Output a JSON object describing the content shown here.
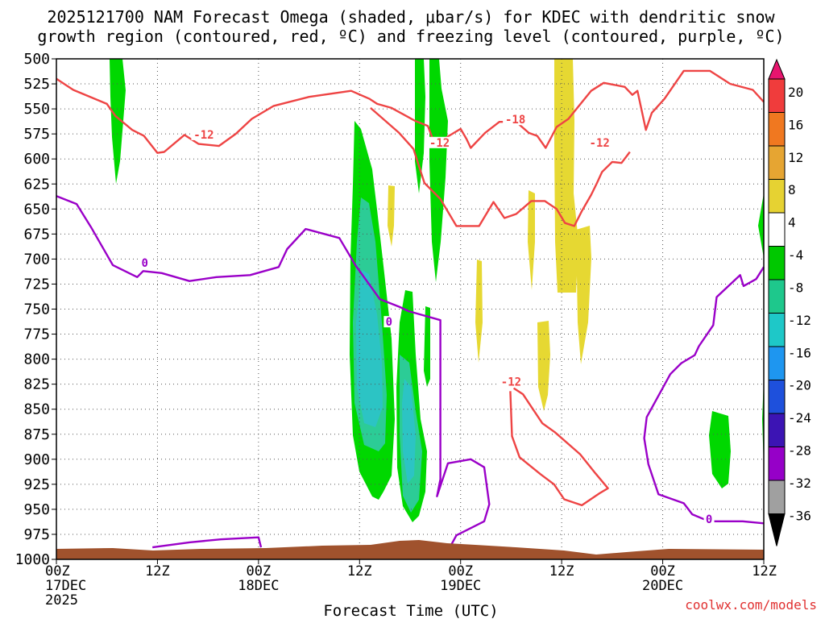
{
  "chart_data": {
    "type": "heatmap",
    "title_line1": "2025121700 NAM Forecast Omega (shaded, μbar/s) for KDEC with dendritic snow",
    "title_line2": "growth region (contoured, red, ºC) and freezing level (contoured, purple, ºC)",
    "xlabel": "Forecast Time (UTC)",
    "ylabel": "Pressure (hPa)",
    "credit": "coolwx.com/models",
    "x_range_hours": [
      0,
      84
    ],
    "y_range": [
      500,
      1000
    ],
    "x_ticks": [
      {
        "h": 0,
        "line1": "00Z",
        "line2": "17DEC",
        "line3": "2025"
      },
      {
        "h": 12,
        "line1": "12Z",
        "line2": "",
        "line3": ""
      },
      {
        "h": 24,
        "line1": "00Z",
        "line2": "18DEC",
        "line3": ""
      },
      {
        "h": 36,
        "line1": "12Z",
        "line2": "",
        "line3": ""
      },
      {
        "h": 48,
        "line1": "00Z",
        "line2": "19DEC",
        "line3": ""
      },
      {
        "h": 60,
        "line1": "12Z",
        "line2": "",
        "line3": ""
      },
      {
        "h": 72,
        "line1": "00Z",
        "line2": "20DEC",
        "line3": ""
      },
      {
        "h": 84,
        "line1": "12Z",
        "line2": "",
        "line3": ""
      }
    ],
    "y_ticks": [
      500,
      525,
      550,
      575,
      600,
      625,
      650,
      675,
      700,
      725,
      750,
      775,
      800,
      825,
      850,
      875,
      900,
      925,
      950,
      975,
      1000
    ],
    "colorbar": {
      "labels": [
        "20",
        "16",
        "12",
        "8",
        "4",
        "-4",
        "-8",
        "-12",
        "-16",
        "-20",
        "-24",
        "-28",
        "-32",
        "-36"
      ],
      "colors": [
        "#e8156e",
        "#f03c3c",
        "#f07820",
        "#e6a532",
        "#e6d232",
        "#ffffff",
        "#00c800",
        "#1ec88c",
        "#1ec8c8",
        "#1e96f0",
        "#1e50dc",
        "#3c14b4",
        "#9600c8",
        "#a0a0a0",
        "#000000"
      ]
    },
    "contour_labels": [
      {
        "text": "-12",
        "h": 17.5,
        "p": 578,
        "color": "#ee4444"
      },
      {
        "text": "-18",
        "h": 54.5,
        "p": 563,
        "color": "#ee4444"
      },
      {
        "text": "-12",
        "h": 45.5,
        "p": 586,
        "color": "#ee4444"
      },
      {
        "text": "-12",
        "h": 64.5,
        "p": 586,
        "color": "#ee4444"
      },
      {
        "text": "-12",
        "h": 54.0,
        "p": 825,
        "color": "#ee4444"
      },
      {
        "text": "0",
        "h": 10.5,
        "p": 706,
        "color": "#9a00c8"
      },
      {
        "text": "0",
        "h": 39.5,
        "p": 765,
        "color": "#9a00c8"
      },
      {
        "text": "0",
        "h": 77.5,
        "p": 962,
        "color": "#9a00c8"
      }
    ],
    "series": [
      {
        "name": "freezing-level-0C-main",
        "color": "#9a00c8",
        "points": [
          [
            0,
            637
          ],
          [
            2.4,
            645
          ],
          [
            4.1,
            668
          ],
          [
            6.7,
            706
          ],
          [
            9.6,
            718
          ],
          [
            10.3,
            712
          ],
          [
            12.5,
            714
          ],
          [
            15.8,
            722
          ],
          [
            19.0,
            718
          ],
          [
            23.0,
            716
          ],
          [
            26.4,
            708
          ],
          [
            27.4,
            690
          ],
          [
            29.6,
            670
          ],
          [
            33.6,
            679
          ],
          [
            35.5,
            706
          ],
          [
            38.4,
            740
          ],
          [
            40.8,
            748
          ],
          [
            41.8,
            752
          ],
          [
            45.6,
            761
          ],
          [
            45.6,
            920
          ],
          [
            45.2,
            937
          ],
          [
            46.5,
            904
          ],
          [
            49.2,
            900
          ],
          [
            50.8,
            908
          ],
          [
            51.4,
            945
          ],
          [
            50.8,
            962
          ],
          [
            47.5,
            976
          ],
          [
            46.4,
            993
          ]
        ]
      },
      {
        "name": "freezing-level-0C-right",
        "color": "#9a00c8",
        "points": [
          [
            84,
            964
          ],
          [
            81.5,
            962
          ],
          [
            77.5,
            962
          ],
          [
            75.5,
            955
          ],
          [
            74.5,
            944
          ],
          [
            71.5,
            935
          ],
          [
            70.3,
            905
          ],
          [
            69.8,
            879
          ],
          [
            70.1,
            858
          ],
          [
            72.9,
            815
          ],
          [
            74.2,
            804
          ],
          [
            75.8,
            796
          ],
          [
            76.3,
            787
          ],
          [
            78.0,
            766
          ],
          [
            78.4,
            738
          ],
          [
            81.2,
            716
          ],
          [
            81.6,
            727
          ],
          [
            83.1,
            720
          ],
          [
            84,
            708
          ]
        ]
      },
      {
        "name": "freezing-level-0C-surface",
        "color": "#9a00c8",
        "points": [
          [
            11.4,
            988
          ],
          [
            15.8,
            983
          ],
          [
            19.5,
            980
          ],
          [
            24.0,
            978
          ],
          [
            24.3,
            988
          ]
        ]
      },
      {
        "name": "dgz-minus12-top",
        "color": "#ee4444",
        "points": [
          [
            0,
            520
          ],
          [
            2.0,
            531
          ],
          [
            6.0,
            545
          ],
          [
            7.0,
            557
          ],
          [
            9.0,
            571
          ],
          [
            10.4,
            577
          ],
          [
            12.0,
            594
          ],
          [
            12.8,
            593
          ],
          [
            15.2,
            576
          ],
          [
            16.9,
            585
          ],
          [
            19.3,
            587
          ],
          [
            21.3,
            575
          ],
          [
            23.2,
            560
          ],
          [
            25.8,
            547
          ],
          [
            30.0,
            538
          ],
          [
            35.0,
            532
          ],
          [
            37.2,
            540
          ],
          [
            38.1,
            545
          ],
          [
            39.8,
            549
          ],
          [
            42.6,
            562
          ],
          [
            44.1,
            567
          ],
          [
            45.0,
            587
          ],
          [
            46.4,
            578
          ],
          [
            48.0,
            570
          ],
          [
            48.7,
            580
          ],
          [
            49.2,
            589
          ],
          [
            50.9,
            574
          ],
          [
            52.6,
            563
          ],
          [
            54.6,
            563
          ],
          [
            56.1,
            574
          ],
          [
            57.1,
            577
          ],
          [
            58.1,
            589
          ],
          [
            59.4,
            568
          ],
          [
            60.8,
            560
          ],
          [
            63.5,
            532
          ],
          [
            65.0,
            524
          ],
          [
            67.5,
            528
          ],
          [
            68.4,
            536
          ],
          [
            69.0,
            532
          ],
          [
            70.0,
            571
          ],
          [
            70.7,
            554
          ],
          [
            72.2,
            540
          ],
          [
            74.5,
            512
          ],
          [
            77.6,
            512
          ],
          [
            80.0,
            525
          ],
          [
            82.7,
            531
          ],
          [
            84,
            543
          ]
        ]
      },
      {
        "name": "dgz-minus12-mid",
        "color": "#ee4444",
        "points": [
          [
            37.3,
            549
          ],
          [
            40.7,
            574
          ],
          [
            42.4,
            590
          ],
          [
            43.7,
            624
          ],
          [
            45.6,
            640
          ],
          [
            47.5,
            667
          ],
          [
            50.2,
            667
          ],
          [
            51.9,
            643
          ],
          [
            53.2,
            659
          ],
          [
            54.6,
            655
          ],
          [
            56.4,
            642
          ],
          [
            58.0,
            642
          ],
          [
            59.4,
            650
          ],
          [
            60.4,
            664
          ],
          [
            61.5,
            667
          ],
          [
            62.4,
            652
          ],
          [
            63.5,
            636
          ],
          [
            64.2,
            624
          ],
          [
            64.8,
            613
          ],
          [
            66.0,
            603
          ],
          [
            67.1,
            604
          ],
          [
            68.1,
            593
          ]
        ]
      },
      {
        "name": "dgz-minus12-lower",
        "color": "#ee4444",
        "points": [
          [
            53.9,
            832
          ],
          [
            54.1,
            877
          ],
          [
            55.0,
            898
          ],
          [
            57.5,
            915
          ],
          [
            59.1,
            925
          ],
          [
            60.3,
            940
          ],
          [
            62.4,
            946
          ],
          [
            64.5,
            934
          ],
          [
            65.5,
            929
          ],
          [
            64.0,
            914
          ],
          [
            62.2,
            895
          ],
          [
            59.2,
            873
          ],
          [
            57.7,
            864
          ],
          [
            55.4,
            835
          ],
          [
            54.3,
            829
          ]
        ]
      }
    ],
    "omega_regions": [
      {
        "level": "-4 to -8",
        "color": "#00d800"
      },
      {
        "level": "-8 to -12",
        "color": "#2ccc96"
      },
      {
        "level": "-12 to -16",
        "color": "#2cc4c4"
      },
      {
        "level": "4 to 8",
        "color": "#e6d832"
      }
    ]
  }
}
